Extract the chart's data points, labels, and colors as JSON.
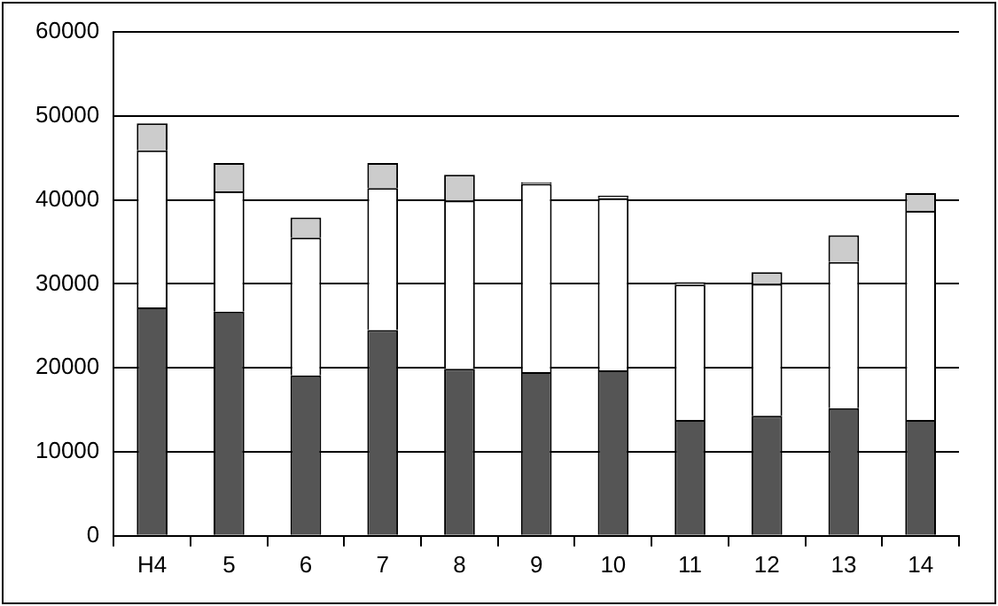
{
  "chart_data": {
    "type": "bar",
    "stacked": true,
    "categories": [
      "H4",
      "5",
      "6",
      "7",
      "8",
      "9",
      "10",
      "11",
      "12",
      "13",
      "14"
    ],
    "series": [
      {
        "color": "#555555",
        "values": [
          27200,
          26700,
          19100,
          24500,
          19900,
          19500,
          19700,
          13800,
          14300,
          15200,
          13800
        ]
      },
      {
        "color": "#ffffff",
        "values": [
          18700,
          14300,
          16400,
          16900,
          20000,
          22400,
          20500,
          16100,
          15700,
          17400,
          24900
        ]
      },
      {
        "color": "#cccccc",
        "values": [
          3200,
          3400,
          2400,
          3000,
          3100,
          200,
          300,
          300,
          1400,
          3200,
          2100
        ]
      }
    ],
    "ylim": [
      0,
      60000
    ],
    "yticks": [
      0,
      10000,
      20000,
      30000,
      40000,
      50000,
      60000
    ],
    "grid": "y",
    "legend": false
  }
}
